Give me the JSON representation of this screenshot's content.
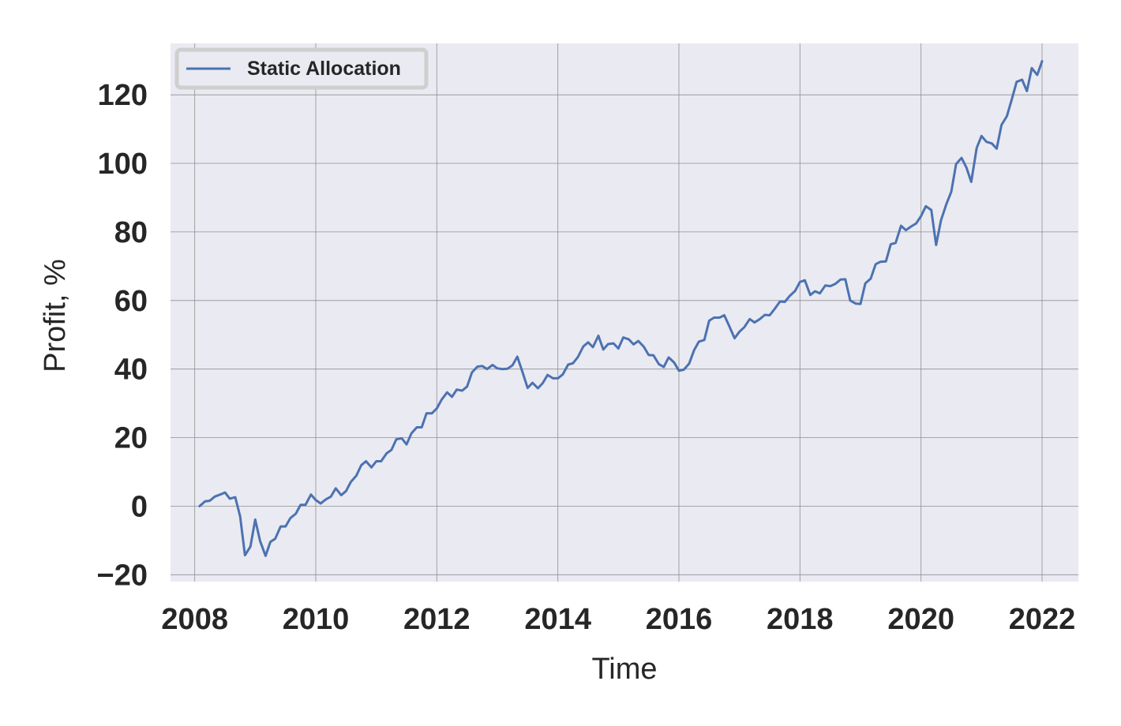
{
  "chart_data": {
    "type": "line",
    "xlabel": "Time",
    "ylabel": "Profit, %",
    "xlim": [
      2007.6,
      2022.6
    ],
    "ylim": [
      -22,
      135
    ],
    "x_ticks": [
      2008,
      2010,
      2012,
      2014,
      2016,
      2018,
      2020,
      2022
    ],
    "x_tick_labels": [
      "2008",
      "2010",
      "2012",
      "2014",
      "2016",
      "2018",
      "2020",
      "2022"
    ],
    "y_ticks": [
      -20,
      0,
      20,
      40,
      60,
      80,
      100,
      120
    ],
    "y_tick_labels": [
      "−20",
      "0",
      "20",
      "40",
      "60",
      "80",
      "100",
      "120"
    ],
    "grid": true,
    "legend_position": "top-left",
    "colors": {
      "plot_background": "#eaeaf2",
      "grid": "#8f8f8f",
      "series": "#4c72b0"
    },
    "series": [
      {
        "name": "Static Allocation",
        "x": [
          2008.08,
          2008.17,
          2008.25,
          2008.33,
          2008.42,
          2008.5,
          2008.58,
          2008.67,
          2008.75,
          2008.83,
          2008.92,
          2009.0,
          2009.08,
          2009.17,
          2009.25,
          2009.33,
          2009.42,
          2009.5,
          2009.58,
          2009.67,
          2009.75,
          2009.83,
          2009.92,
          2010.0,
          2010.08,
          2010.17,
          2010.25,
          2010.33,
          2010.42,
          2010.5,
          2010.58,
          2010.67,
          2010.75,
          2010.83,
          2010.92,
          2011.0,
          2011.08,
          2011.17,
          2011.25,
          2011.33,
          2011.42,
          2011.5,
          2011.58,
          2011.67,
          2011.75,
          2011.83,
          2011.92,
          2012.0,
          2012.08,
          2012.17,
          2012.25,
          2012.33,
          2012.42,
          2012.5,
          2012.58,
          2012.67,
          2012.75,
          2012.83,
          2012.92,
          2013.0,
          2013.08,
          2013.17,
          2013.25,
          2013.33,
          2013.42,
          2013.5,
          2013.58,
          2013.67,
          2013.75,
          2013.83,
          2013.92,
          2014.0,
          2014.08,
          2014.17,
          2014.25,
          2014.33,
          2014.42,
          2014.5,
          2014.58,
          2014.67,
          2014.75,
          2014.83,
          2014.92,
          2015.0,
          2015.08,
          2015.17,
          2015.25,
          2015.33,
          2015.42,
          2015.5,
          2015.58,
          2015.67,
          2015.75,
          2015.83,
          2015.92,
          2016.0,
          2016.08,
          2016.17,
          2016.25,
          2016.33,
          2016.42,
          2016.5,
          2016.58,
          2016.67,
          2016.75,
          2016.83,
          2016.92,
          2017.0,
          2017.08,
          2017.17,
          2017.25,
          2017.33,
          2017.42,
          2017.5,
          2017.58,
          2017.67,
          2017.75,
          2017.83,
          2017.92,
          2018.0,
          2018.08,
          2018.17,
          2018.25,
          2018.33,
          2018.42,
          2018.5,
          2018.58,
          2018.67,
          2018.75,
          2018.83,
          2018.92,
          2019.0,
          2019.08,
          2019.17,
          2019.25,
          2019.33,
          2019.42,
          2019.5,
          2019.58,
          2019.67,
          2019.75,
          2019.83,
          2019.92,
          2020.0,
          2020.08,
          2020.17,
          2020.25,
          2020.33,
          2020.42,
          2020.5,
          2020.58,
          2020.67,
          2020.75,
          2020.83,
          2020.92,
          2021.0,
          2021.08,
          2021.17,
          2021.25,
          2021.33,
          2021.42,
          2021.5,
          2021.58,
          2021.67,
          2021.75,
          2021.83,
          2021.92,
          2022.0
        ],
        "y": [
          0,
          1.4,
          1.6,
          2.8,
          3.4,
          4.0,
          2.2,
          2.6,
          -3.0,
          -14.3,
          -11.8,
          -3.9,
          -10.2,
          -14.5,
          -10.4,
          -9.5,
          -5.9,
          -5.9,
          -3.5,
          -2.2,
          0.4,
          0.4,
          3.4,
          1.8,
          0.8,
          2.0,
          2.8,
          5.2,
          3.2,
          4.4,
          7.1,
          8.9,
          11.9,
          13.1,
          11.3,
          13.1,
          13.1,
          15.4,
          16.4,
          19.5,
          19.8,
          18.0,
          21.2,
          23.0,
          23.0,
          27.1,
          27.1,
          28.5,
          31.1,
          33.2,
          31.9,
          34.0,
          33.7,
          34.9,
          39.0,
          40.7,
          40.9,
          40.0,
          41.2,
          40.2,
          40.0,
          40.1,
          41.1,
          43.6,
          38.9,
          34.5,
          36.0,
          34.4,
          35.9,
          38.3,
          37.3,
          37.3,
          38.4,
          41.3,
          41.7,
          43.5,
          46.6,
          47.8,
          46.4,
          49.7,
          45.7,
          47.3,
          47.5,
          46.0,
          49.2,
          48.7,
          47.2,
          48.2,
          46.5,
          44.1,
          44.0,
          41.4,
          40.6,
          43.4,
          41.9,
          39.5,
          39.8,
          41.6,
          45.5,
          48.0,
          48.5,
          54.1,
          55.0,
          55.0,
          55.7,
          52.6,
          49.0,
          50.9,
          52.2,
          54.6,
          53.6,
          54.5,
          55.8,
          55.7,
          57.5,
          59.7,
          59.6,
          61.3,
          62.8,
          65.4,
          65.9,
          61.6,
          62.7,
          62.1,
          64.4,
          64.2,
          64.8,
          66.1,
          66.2,
          60.0,
          59.1,
          59.0,
          65.0,
          66.4,
          70.6,
          71.3,
          71.4,
          76.4,
          76.8,
          81.8,
          80.5,
          81.5,
          82.5,
          84.6,
          87.5,
          86.4,
          76.2,
          83.4,
          88.2,
          91.7,
          99.8,
          101.6,
          98.8,
          94.6,
          104.5,
          108.0,
          106.3,
          105.8,
          104.3,
          111.2,
          113.8,
          118.7,
          123.8,
          124.4,
          121.1,
          127.8,
          125.8,
          129.8
        ]
      }
    ]
  }
}
